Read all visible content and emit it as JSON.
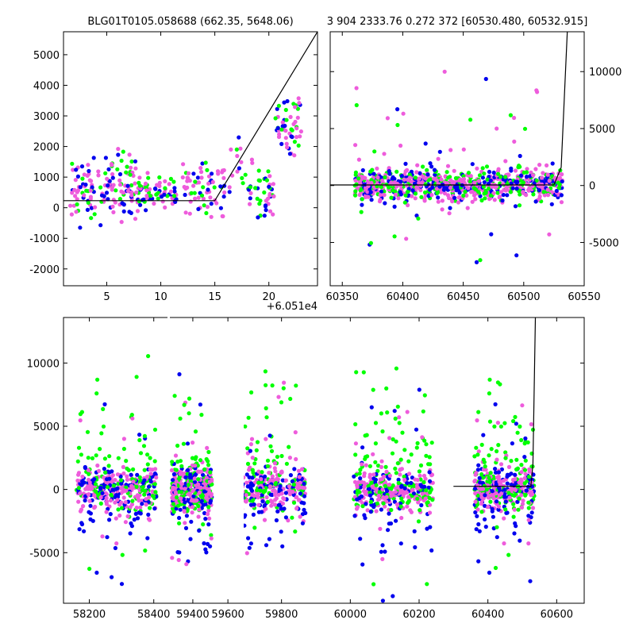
{
  "figure": {
    "title_left": "BLG01T0105.058688 (662.35, 5648.06)",
    "title_right": "3 904 2333.76 0.272 372 [60530.480, 60532.915]"
  },
  "colors": {
    "green": "#00ff00",
    "blue": "#0000ee",
    "pink": "#ee5cdc",
    "model": "#000000"
  },
  "chart_data": [
    {
      "type": "scatter",
      "panel": "zoom",
      "x_offset_label": "+6.051e4",
      "xlim": [
        1,
        24.5
      ],
      "ylim": [
        -2550,
        5750
      ],
      "x_ticks": [
        5,
        10,
        15,
        20
      ],
      "y_ticks": [
        -2000,
        -1000,
        0,
        1000,
        2000,
        3000,
        4000,
        5000
      ],
      "model_line": {
        "x": [
          1,
          15,
          24.5
        ],
        "y": [
          230,
          230,
          5750
        ]
      },
      "clusters": [
        {
          "x": [
            1.5,
            4.5
          ],
          "y": [
            -2200,
            3500
          ],
          "n": 60,
          "sd": 900
        },
        {
          "x": [
            4.5,
            8
          ],
          "y": [
            -2200,
            3600
          ],
          "n": 90,
          "sd": 800
        },
        {
          "x": [
            8,
            11.5
          ],
          "y": [
            -800,
            1800
          ],
          "n": 70,
          "sd": 400
        },
        {
          "x": [
            12,
            16
          ],
          "y": [
            -2100,
            3300
          ],
          "n": 70,
          "sd": 700
        },
        {
          "x": [
            16,
            18
          ],
          "y": [
            -300,
            2900
          ],
          "n": 14,
          "sd": 800
        },
        {
          "x": [
            18,
            20.5
          ],
          "y": [
            -1700,
            2600
          ],
          "n": 45,
          "sd": 700
        },
        {
          "x": [
            20.5,
            23
          ],
          "y": [
            -400,
            5600
          ],
          "n": 55,
          "sd": 900
        }
      ]
    },
    {
      "type": "scatter",
      "panel": "full",
      "xlim": [
        60340,
        60550
      ],
      "ylim": [
        -8800,
        13500
      ],
      "x_ticks": [
        60350,
        60400,
        60450,
        60500,
        60550
      ],
      "y_ticks": [
        -5000,
        0,
        5000,
        10000
      ],
      "y_axis_side": "right",
      "model_line": {
        "x": [
          60340,
          60525,
          60531,
          60536
        ],
        "y": [
          50,
          50,
          1600,
          13500
        ]
      },
      "data_range": [
        60360,
        60532
      ],
      "band_sd": 700
    },
    {
      "type": "scatter",
      "panel": "seasons",
      "ylim": [
        -9000,
        13600
      ],
      "y_ticks": [
        -5000,
        0,
        5000,
        10000
      ],
      "segments": [
        {
          "xlim": [
            58120,
            58445
          ],
          "x_ticks": [
            58200,
            58400
          ],
          "seasons": [
            [
              58160,
              58410
            ]
          ]
        },
        {
          "xlim": [
            59260,
            59690
          ],
          "x_ticks": [
            59400,
            59600
          ],
          "seasons": [
            [
              59280,
              59510
            ]
          ]
        },
        {
          "xlim": [
            59690,
            60680
          ],
          "x_ticks": [
            59800,
            60000,
            60200,
            60400,
            60600
          ],
          "seasons": [
            [
              59640,
              59870
            ],
            [
              60010,
              60240
            ],
            [
              60360,
              60535
            ]
          ]
        }
      ],
      "model_line": {
        "x": [
          60300,
          60525,
          60531,
          60538
        ],
        "y": [
          250,
          250,
          2000,
          13600
        ]
      }
    }
  ]
}
